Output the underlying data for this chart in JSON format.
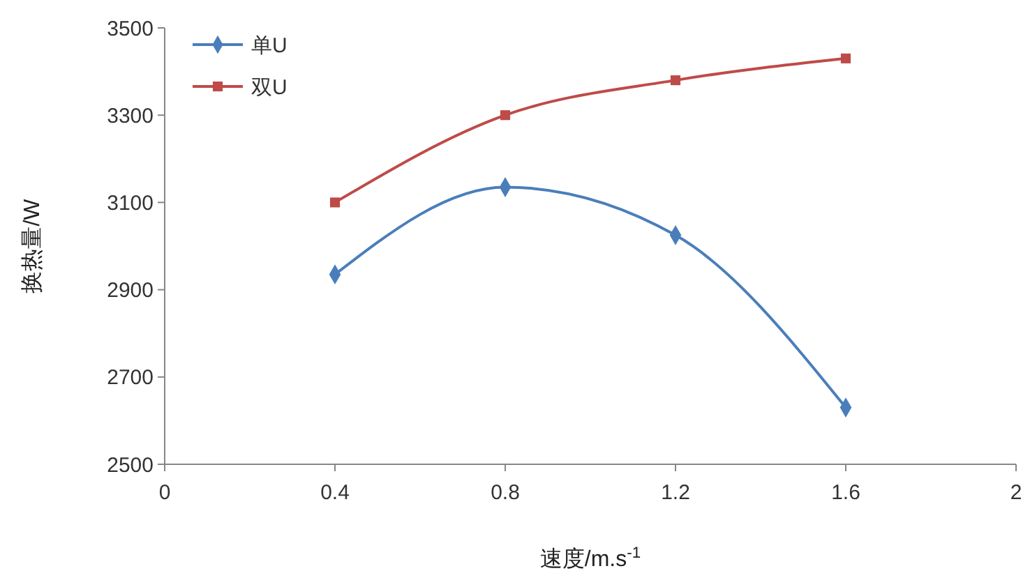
{
  "chart_data": {
    "type": "line",
    "xlabel": "速度/m.s$^{-1}$",
    "ylabel": "换热量/W",
    "x": [
      0.4,
      0.8,
      1.2,
      1.6
    ],
    "xlim": [
      0,
      2
    ],
    "xticks": [
      0,
      0.4,
      0.8,
      1.2,
      1.6,
      2
    ],
    "ylim": [
      2500,
      3500
    ],
    "yticks": [
      2500,
      2700,
      2900,
      3100,
      3300,
      3500
    ],
    "grid": false,
    "legend": "top left",
    "line_style": "solid",
    "series": [
      {
        "name": "单U",
        "color": "#4a7ebb",
        "marker": "diamond",
        "values": [
          2935,
          3135,
          3025,
          2630
        ]
      },
      {
        "name": "双U",
        "color": "#be4b48",
        "marker": "square",
        "values": [
          3100,
          3300,
          3380,
          3430
        ]
      }
    ]
  }
}
